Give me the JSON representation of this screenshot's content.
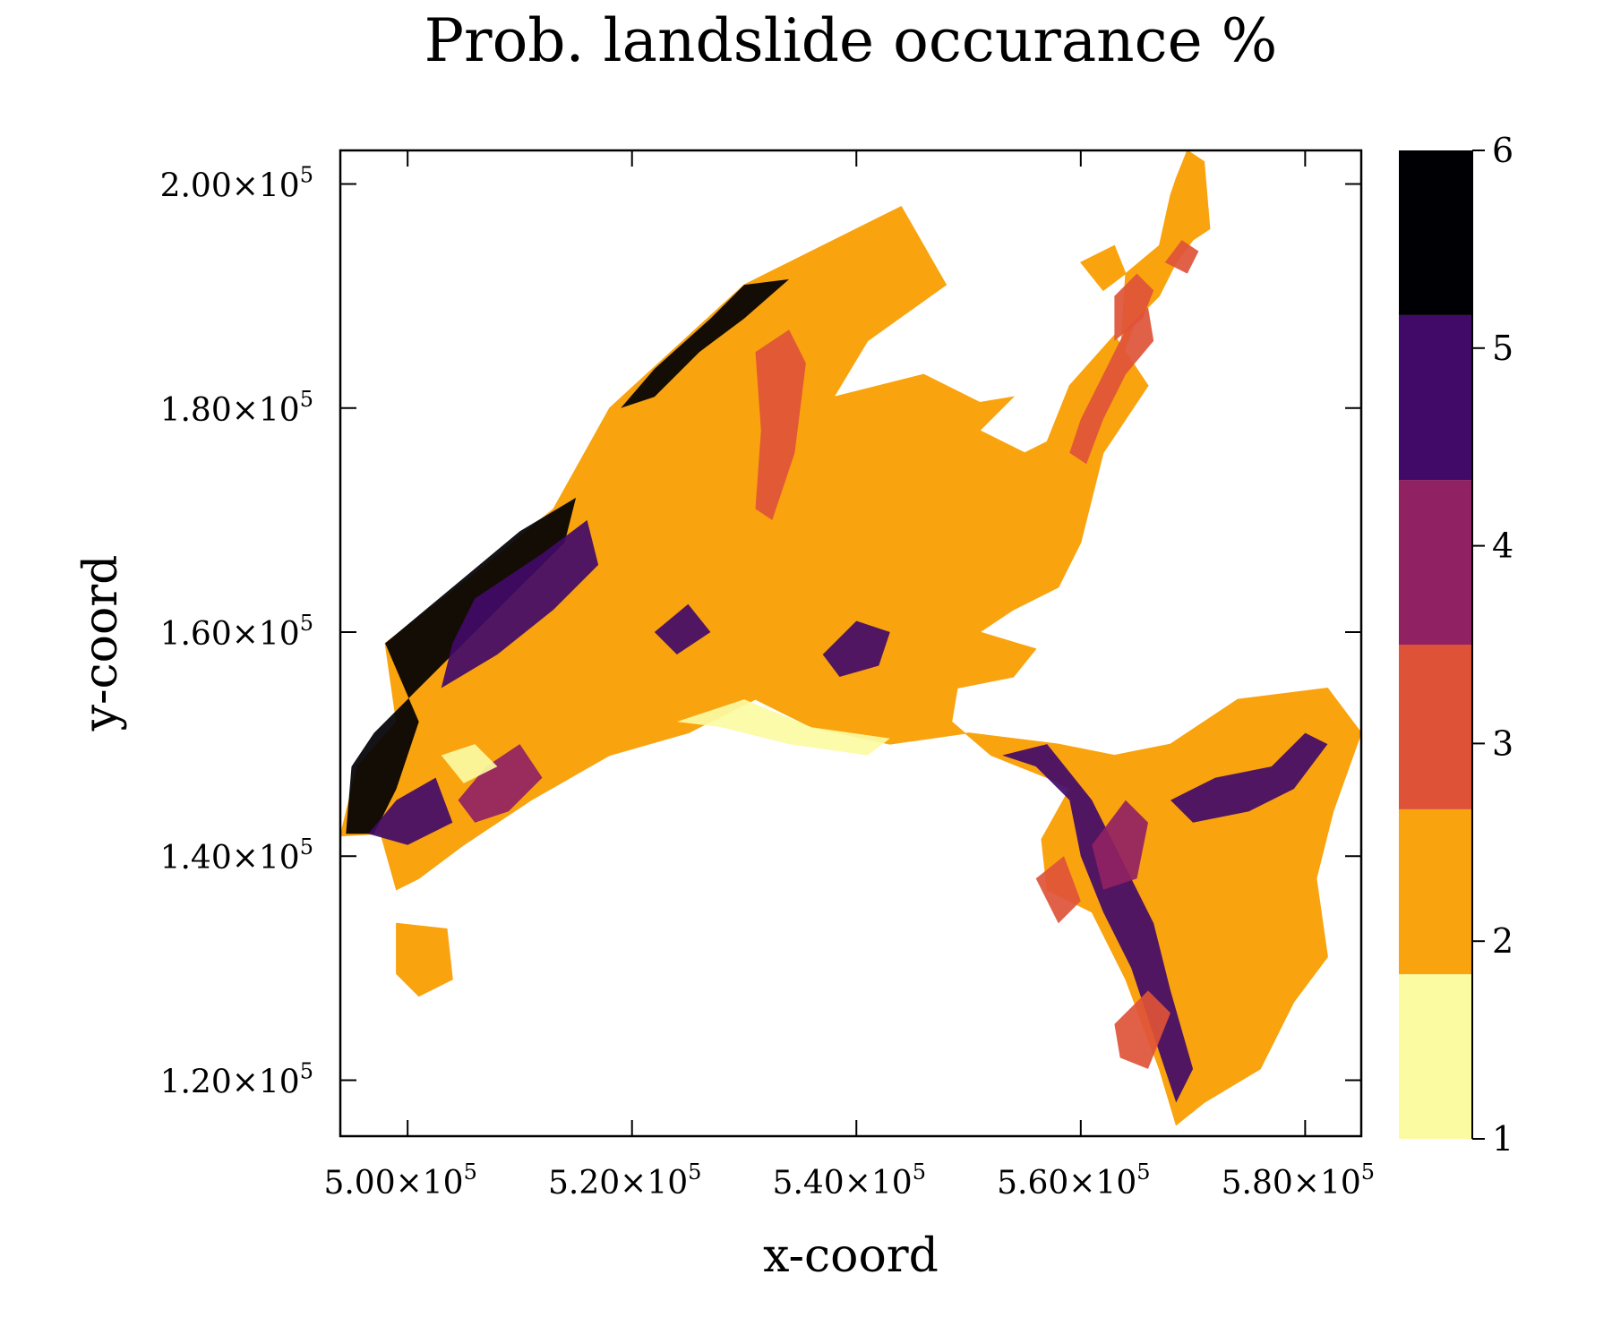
{
  "chart_data": {
    "type": "heatmap",
    "title": "Prob. landslide occurance %",
    "xlabel": "x-coord",
    "ylabel": "y-coord",
    "xlim": [
      494000,
      585000
    ],
    "ylim": [
      115000,
      203000
    ],
    "x_ticks": [
      {
        "value": 500000,
        "mantissa": "5.00",
        "times": "×10",
        "exp": "5"
      },
      {
        "value": 520000,
        "mantissa": "5.20",
        "times": "×10",
        "exp": "5"
      },
      {
        "value": 540000,
        "mantissa": "5.40",
        "times": "×10",
        "exp": "5"
      },
      {
        "value": 560000,
        "mantissa": "5.60",
        "times": "×10",
        "exp": "5"
      },
      {
        "value": 580000,
        "mantissa": "5.80",
        "times": "×10",
        "exp": "5"
      }
    ],
    "y_ticks": [
      {
        "value": 120000,
        "mantissa": "1.20",
        "times": "×10",
        "exp": "5"
      },
      {
        "value": 140000,
        "mantissa": "1.40",
        "times": "×10",
        "exp": "5"
      },
      {
        "value": 160000,
        "mantissa": "1.60",
        "times": "×10",
        "exp": "5"
      },
      {
        "value": 180000,
        "mantissa": "1.80",
        "times": "×10",
        "exp": "5"
      },
      {
        "value": 200000,
        "mantissa": "2.00",
        "times": "×10",
        "exp": "5"
      }
    ],
    "colorbar": {
      "range": [
        1,
        6
      ],
      "ticks": [
        "1",
        "2",
        "3",
        "4",
        "5",
        "6"
      ],
      "bins": [
        {
          "from": 1.0,
          "to": 1.833,
          "color": "#fbfba2"
        },
        {
          "from": 1.833,
          "to": 2.667,
          "color": "#f9a30f"
        },
        {
          "from": 2.667,
          "to": 3.5,
          "color": "#de5238"
        },
        {
          "from": 3.5,
          "to": 4.333,
          "color": "#902263"
        },
        {
          "from": 4.333,
          "to": 5.167,
          "color": "#420a68"
        },
        {
          "from": 5.167,
          "to": 6.0,
          "color": "#000004"
        }
      ]
    },
    "regions": [
      {
        "name": "main",
        "value": 2,
        "outline": [
          [
            497600,
            142000
          ],
          [
            494000,
            141800
          ],
          [
            495500,
            148000
          ],
          [
            499000,
            152000
          ],
          [
            498000,
            159000
          ],
          [
            507000,
            166000
          ],
          [
            513000,
            171000
          ],
          [
            518000,
            180000
          ],
          [
            524000,
            185500
          ],
          [
            530000,
            191000
          ],
          [
            544000,
            198000
          ],
          [
            548000,
            191000
          ],
          [
            541000,
            186000
          ],
          [
            538000,
            181000
          ],
          [
            546000,
            183000
          ],
          [
            551000,
            180500
          ],
          [
            554000,
            181000
          ],
          [
            551000,
            178000
          ],
          [
            555000,
            176000
          ],
          [
            557000,
            177000
          ],
          [
            559000,
            182000
          ],
          [
            563000,
            186500
          ],
          [
            566000,
            182000
          ],
          [
            562000,
            176000
          ],
          [
            560000,
            168000
          ],
          [
            558000,
            164000
          ],
          [
            554000,
            162000
          ],
          [
            551000,
            160000
          ],
          [
            556000,
            158500
          ],
          [
            554000,
            156000
          ],
          [
            549000,
            155000
          ],
          [
            548500,
            152000
          ],
          [
            552000,
            149000
          ],
          [
            557000,
            147000
          ],
          [
            559000,
            146000
          ],
          [
            556500,
            141500
          ],
          [
            557000,
            137000
          ],
          [
            561000,
            135000
          ],
          [
            564000,
            129000
          ],
          [
            567000,
            121000
          ],
          [
            568500,
            116000
          ],
          [
            571000,
            118000
          ],
          [
            576000,
            121000
          ],
          [
            579000,
            127000
          ],
          [
            582000,
            131000
          ],
          [
            581000,
            138000
          ],
          [
            582500,
            144000
          ],
          [
            585000,
            151000
          ],
          [
            582000,
            155000
          ],
          [
            574000,
            154000
          ],
          [
            568000,
            150000
          ],
          [
            563000,
            149000
          ],
          [
            558000,
            150000
          ],
          [
            550000,
            151000
          ],
          [
            543000,
            150000
          ],
          [
            536000,
            151500
          ],
          [
            531000,
            154000
          ],
          [
            525000,
            151000
          ],
          [
            518000,
            149000
          ],
          [
            511000,
            145000
          ],
          [
            505000,
            141000
          ],
          [
            501000,
            138000
          ],
          [
            499000,
            137000
          ]
        ]
      },
      {
        "name": "island",
        "value": 2,
        "outline": [
          [
            499000,
            134000
          ],
          [
            503500,
            133500
          ],
          [
            504000,
            129000
          ],
          [
            501000,
            127500
          ],
          [
            499000,
            129500
          ]
        ]
      },
      {
        "name": "north-arm",
        "value": 2,
        "outline": [
          [
            560000,
            180000
          ],
          [
            563500,
            184000
          ],
          [
            564000,
            192000
          ],
          [
            567000,
            194500
          ],
          [
            568000,
            199000
          ],
          [
            568500,
            200500
          ],
          [
            569500,
            203000
          ],
          [
            571000,
            202000
          ],
          [
            571500,
            196000
          ],
          [
            570000,
            195000
          ],
          [
            568500,
            193000
          ],
          [
            567000,
            190000
          ],
          [
            565000,
            188000
          ],
          [
            564000,
            185500
          ],
          [
            562000,
            179000
          ]
        ]
      },
      {
        "name": "north-left",
        "value": 2,
        "outline": [
          [
            560000,
            193000
          ],
          [
            563000,
            194500
          ],
          [
            564000,
            192000
          ],
          [
            562000,
            190500
          ]
        ]
      }
    ],
    "patches": [
      {
        "value": 6,
        "outline": [
          [
            498000,
            159000
          ],
          [
            504000,
            164000
          ],
          [
            510000,
            169000
          ],
          [
            515000,
            172000
          ],
          [
            514000,
            168000
          ],
          [
            510000,
            164000
          ],
          [
            505000,
            159000
          ],
          [
            501000,
            155000
          ],
          [
            497000,
            151000
          ],
          [
            495000,
            148000
          ],
          [
            494500,
            142000
          ],
          [
            497000,
            142000
          ],
          [
            499000,
            146000
          ],
          [
            501000,
            152000
          ]
        ]
      },
      {
        "value": 6,
        "outline": [
          [
            519000,
            180000
          ],
          [
            522000,
            183500
          ],
          [
            527000,
            188000
          ],
          [
            530000,
            191000
          ],
          [
            534000,
            191500
          ],
          [
            530000,
            188000
          ],
          [
            526000,
            185000
          ],
          [
            522000,
            181000
          ]
        ]
      },
      {
        "value": 5,
        "outline": [
          [
            506000,
            163000
          ],
          [
            512000,
            167000
          ],
          [
            516000,
            170000
          ],
          [
            517000,
            166000
          ],
          [
            513000,
            162000
          ],
          [
            508000,
            158000
          ],
          [
            503000,
            155000
          ],
          [
            504000,
            159000
          ]
        ]
      },
      {
        "value": 5,
        "outline": [
          [
            496500,
            142000
          ],
          [
            499000,
            145000
          ],
          [
            502500,
            147000
          ],
          [
            504000,
            143000
          ],
          [
            500000,
            141000
          ]
        ]
      },
      {
        "value": 5,
        "outline": [
          [
            553000,
            149000
          ],
          [
            556000,
            148000
          ],
          [
            559000,
            145000
          ],
          [
            560000,
            140000
          ],
          [
            562000,
            135000
          ],
          [
            564500,
            130000
          ],
          [
            566500,
            124000
          ],
          [
            568500,
            118000
          ],
          [
            570000,
            121000
          ],
          [
            568000,
            128000
          ],
          [
            566500,
            134000
          ],
          [
            563500,
            140000
          ],
          [
            561000,
            145000
          ],
          [
            557000,
            150000
          ]
        ]
      },
      {
        "value": 5,
        "outline": [
          [
            568000,
            145000
          ],
          [
            572000,
            147000
          ],
          [
            577000,
            148000
          ],
          [
            580000,
            151000
          ],
          [
            582000,
            150000
          ],
          [
            579000,
            146000
          ],
          [
            575000,
            144000
          ],
          [
            570000,
            143000
          ]
        ]
      },
      {
        "value": 5,
        "outline": [
          [
            537000,
            158000
          ],
          [
            540000,
            161000
          ],
          [
            543000,
            160000
          ],
          [
            542000,
            157000
          ],
          [
            538500,
            156000
          ]
        ]
      },
      {
        "value": 5,
        "outline": [
          [
            522000,
            160000
          ],
          [
            525000,
            162500
          ],
          [
            527000,
            160000
          ],
          [
            524000,
            158000
          ]
        ]
      },
      {
        "value": 3,
        "outline": [
          [
            531000,
            185000
          ],
          [
            534000,
            187000
          ],
          [
            535500,
            184000
          ],
          [
            534500,
            176000
          ],
          [
            532500,
            170000
          ],
          [
            531000,
            171000
          ],
          [
            531500,
            178000
          ]
        ]
      },
      {
        "value": 3,
        "outline": [
          [
            559000,
            176000
          ],
          [
            560000,
            179000
          ],
          [
            562000,
            183000
          ],
          [
            564000,
            187000
          ],
          [
            566000,
            189000
          ],
          [
            566500,
            186000
          ],
          [
            564000,
            183000
          ],
          [
            562000,
            179000
          ],
          [
            560500,
            175000
          ]
        ]
      },
      {
        "value": 3,
        "outline": [
          [
            563000,
            186000
          ],
          [
            565500,
            188000
          ],
          [
            566500,
            190500
          ],
          [
            565000,
            192000
          ],
          [
            563000,
            190000
          ]
        ]
      },
      {
        "value": 3,
        "outline": [
          [
            567500,
            193000
          ],
          [
            569000,
            195000
          ],
          [
            570500,
            194000
          ],
          [
            569500,
            192000
          ]
        ]
      },
      {
        "value": 3,
        "outline": [
          [
            556000,
            138000
          ],
          [
            558500,
            140000
          ],
          [
            560000,
            136000
          ],
          [
            558000,
            134000
          ]
        ]
      },
      {
        "value": 3,
        "outline": [
          [
            563000,
            125000
          ],
          [
            566000,
            128000
          ],
          [
            568000,
            126000
          ],
          [
            566000,
            121000
          ],
          [
            563500,
            122000
          ]
        ]
      },
      {
        "value": 4,
        "outline": [
          [
            504500,
            145000
          ],
          [
            507000,
            148000
          ],
          [
            510000,
            150000
          ],
          [
            512000,
            147000
          ],
          [
            509000,
            144000
          ],
          [
            506000,
            143000
          ]
        ]
      },
      {
        "value": 4,
        "outline": [
          [
            561000,
            141000
          ],
          [
            564000,
            145000
          ],
          [
            566000,
            143000
          ],
          [
            565000,
            138000
          ],
          [
            562000,
            137000
          ]
        ]
      },
      {
        "value": 1,
        "outline": [
          [
            503000,
            149000
          ],
          [
            506000,
            150000
          ],
          [
            508000,
            148000
          ],
          [
            505000,
            146500
          ]
        ]
      },
      {
        "value": 1,
        "outline": [
          [
            524000,
            152000
          ],
          [
            530000,
            154000
          ],
          [
            536000,
            151500
          ],
          [
            543000,
            150500
          ],
          [
            541000,
            149000
          ],
          [
            534000,
            150000
          ],
          [
            528000,
            151500
          ]
        ]
      }
    ]
  }
}
